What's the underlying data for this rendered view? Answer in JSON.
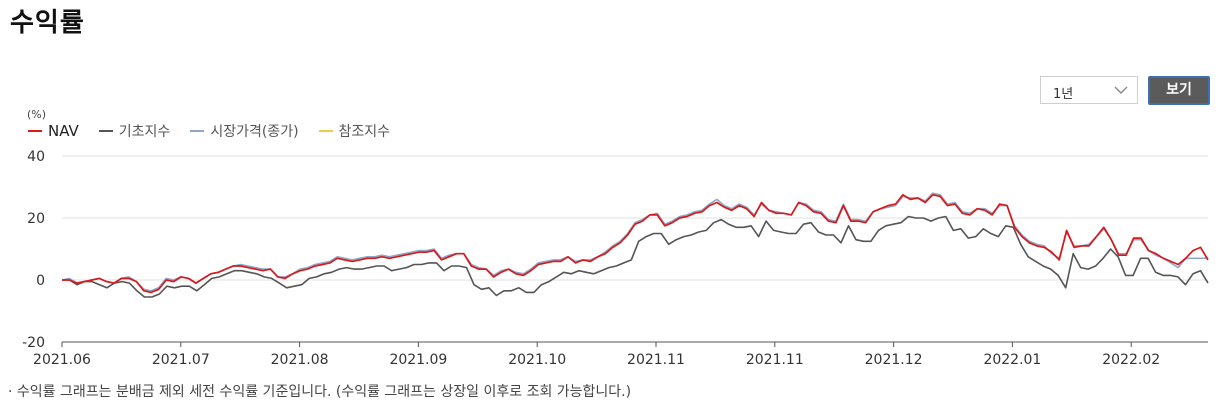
{
  "title": "수익률",
  "controls": {
    "period_value": "1년",
    "view_label": "보기",
    "chevron_icon": "chevron-down-icon"
  },
  "footnote": "· 수익률 그래프는 분배금 제외 세전 수익률 기준입니다. (수익률 그래프는 상장일 이후로 조회 가능합니다.)",
  "chart_data": {
    "type": "line",
    "unit_label": "(%)",
    "ylim": [
      -20,
      40
    ],
    "y_ticks": [
      40,
      20,
      0,
      -20
    ],
    "x_tick_labels": [
      "2021.06",
      "2021.07",
      "2021.08",
      "2021.09",
      "2021.10",
      "2021.11",
      "2021.11",
      "2021.12",
      "2022.01",
      "2022.02"
    ],
    "grid": "horizontal",
    "legend_position": "top-left",
    "series": [
      {
        "name": "NAV",
        "color": "#d7191c",
        "values": [
          0,
          0,
          -1,
          -0.5,
          0,
          0.5,
          -0.5,
          -1,
          0.5,
          0.5,
          -0.5,
          -3.5,
          -4,
          -3,
          0,
          -0.5,
          1,
          0.5,
          -1,
          0.5,
          2,
          2.5,
          3.5,
          4.5,
          4.5,
          4,
          3.5,
          3,
          3.5,
          1,
          0.5,
          2,
          3,
          3.5,
          4.5,
          5,
          5.5,
          7,
          6.5,
          6,
          6.5,
          7,
          7,
          7.5,
          7,
          7.5,
          8,
          8.5,
          9,
          9,
          9.5,
          6.5,
          7.5,
          8.5,
          8.5,
          4.5,
          3.5,
          3.5,
          1,
          2.5,
          3.5,
          2,
          1.5,
          3,
          5,
          5.5,
          6,
          6,
          7.5,
          5.5,
          6.5,
          6,
          7.5,
          8.5,
          10.5,
          12,
          14.5,
          18,
          19,
          21,
          21,
          17.5,
          18.5,
          20,
          20.5,
          21.5,
          22,
          24,
          25,
          23.5,
          22.5,
          24,
          23,
          20.5,
          25,
          22.5,
          21.5,
          21.5,
          21,
          25,
          24,
          22,
          21.5,
          19,
          18.5,
          24,
          19,
          19,
          18.5,
          22,
          23,
          24,
          24.5,
          27.5,
          26,
          26.5,
          25,
          27.5,
          27,
          24,
          24.5,
          21.5,
          21,
          23,
          22.5,
          21,
          24.5,
          24,
          17,
          14,
          12,
          11,
          10.5,
          9,
          6.5,
          16,
          10.5,
          11,
          11,
          14,
          17,
          13,
          8,
          8,
          13.5,
          13.5,
          9.5,
          8.5,
          7,
          6,
          5,
          7,
          9.5,
          10.5,
          6.5
        ]
      },
      {
        "name": "기초지수",
        "color": "#555555",
        "values": [
          0,
          0,
          -1.5,
          -0.5,
          -0.5,
          -1.5,
          -2.5,
          -1,
          -0.5,
          -1,
          -3.5,
          -5.5,
          -5.5,
          -4.5,
          -2,
          -2.5,
          -2,
          -2,
          -3.5,
          -1.5,
          0.5,
          1,
          2,
          3,
          3,
          2.5,
          2,
          1,
          0.5,
          -1,
          -2.5,
          -2,
          -1.5,
          0.5,
          1,
          2,
          2.5,
          3.5,
          4,
          3.5,
          3.5,
          4,
          4.5,
          4.5,
          3,
          3.5,
          4,
          5,
          5,
          5.5,
          5.5,
          3,
          4.5,
          4.5,
          4,
          -1.5,
          -3,
          -2.5,
          -5,
          -3.5,
          -3.5,
          -2.5,
          -4,
          -4,
          -1.5,
          -0.5,
          1,
          2.5,
          2,
          3,
          2.5,
          2,
          3,
          4,
          4.5,
          5.5,
          6.5,
          12.5,
          14,
          15,
          15,
          11.5,
          13,
          14,
          14.5,
          15.5,
          16,
          18.5,
          19.5,
          18,
          17,
          17,
          17.5,
          14,
          19,
          16,
          15.5,
          15,
          15,
          18,
          18.5,
          15.5,
          14.5,
          14.5,
          12,
          17.5,
          13,
          12.5,
          12.5,
          16,
          17.5,
          18,
          18.5,
          20.5,
          20,
          20,
          19,
          20,
          20.5,
          16,
          16.5,
          13.5,
          14,
          16.5,
          15,
          14,
          17.5,
          17,
          11.5,
          7.5,
          6,
          4.5,
          3.5,
          1.5,
          -2.5,
          8.5,
          4,
          3.5,
          4.5,
          7,
          10,
          7.5,
          1.5,
          1.5,
          7,
          7,
          2.5,
          1.5,
          1.5,
          1,
          -1.5,
          2,
          3,
          -1
        ]
      },
      {
        "name": "시장가격(종가)",
        "color": "#8fa8c8",
        "values": [
          0,
          0.5,
          -1,
          -0.5,
          0,
          0.5,
          -0.5,
          -1,
          0.5,
          1,
          -0.5,
          -3,
          -3.5,
          -2.5,
          0.5,
          0,
          1,
          0.5,
          -1,
          0.5,
          2,
          2.5,
          3.5,
          4.5,
          5,
          4.5,
          4,
          3.5,
          3.5,
          1,
          1,
          2,
          3.5,
          4,
          5,
          5.5,
          6,
          7.5,
          7,
          6.5,
          7,
          7.5,
          7.5,
          8,
          7.5,
          8,
          8.5,
          9,
          9.5,
          9.5,
          10,
          7,
          8,
          8.5,
          8.5,
          5,
          4,
          3.5,
          1.5,
          3,
          3.5,
          2.5,
          2,
          3.5,
          5.5,
          6,
          6.5,
          6.5,
          7.5,
          6,
          6.5,
          6.5,
          7.5,
          9,
          11,
          12.5,
          15,
          18.5,
          19.5,
          21,
          21.5,
          18,
          19,
          20.5,
          21,
          22,
          22.5,
          24.5,
          26,
          24,
          23,
          24.5,
          23.5,
          21,
          24.5,
          22.5,
          22,
          21.5,
          21,
          25,
          24.5,
          22.5,
          22,
          19.5,
          19,
          24.5,
          19.5,
          19.5,
          19,
          22,
          23,
          23.5,
          24,
          27,
          26.5,
          26.5,
          25.5,
          28,
          27.5,
          24.5,
          25,
          22,
          21.5,
          23,
          23,
          21.5,
          24,
          24,
          17.5,
          14.5,
          12.5,
          11.5,
          11,
          8.5,
          7,
          15.5,
          11,
          11,
          11.5,
          14,
          16.5,
          13,
          8.5,
          8.5,
          13,
          13,
          9.5,
          8,
          7,
          5.5,
          4,
          7,
          7,
          7,
          7
        ]
      },
      {
        "name": "참조지수",
        "color": "#f2c94c",
        "values": []
      }
    ]
  }
}
